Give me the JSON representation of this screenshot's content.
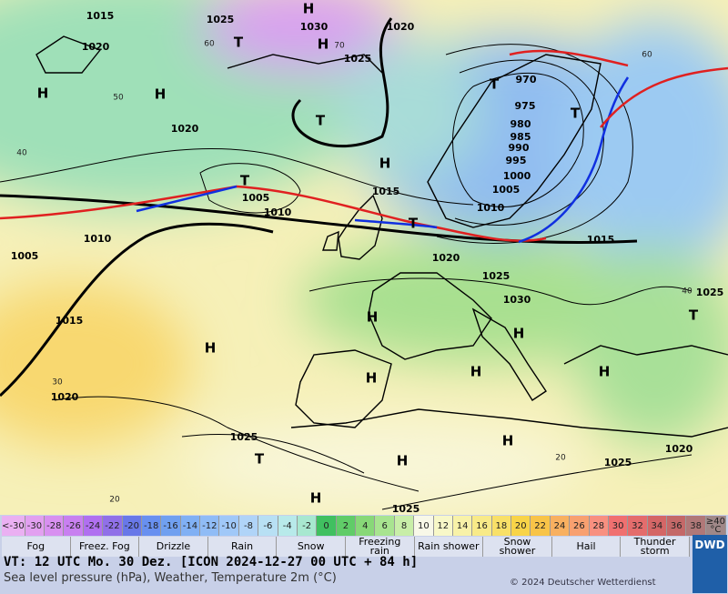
{
  "map": {
    "isobar_labels": [
      "1015",
      "1025",
      "1030",
      "1020",
      "1020",
      "1025",
      "970",
      "975",
      "980",
      "985",
      "990",
      "995",
      "1000",
      "1005",
      "1010",
      "1015",
      "1020",
      "1005",
      "1010",
      "1015",
      "1010",
      "1005",
      "1015",
      "1020",
      "1025",
      "1030",
      "1025",
      "1020",
      "1025",
      "1020",
      "1025",
      "1025"
    ],
    "pressure_centers": [
      "H",
      "H",
      "H",
      "H",
      "H",
      "H",
      "H",
      "H",
      "H",
      "H",
      "H",
      "H",
      "H",
      "H",
      "T",
      "T",
      "T",
      "T",
      "T",
      "T",
      "T",
      "T"
    ],
    "latitude_labels": [
      "60",
      "50",
      "40",
      "30",
      "20",
      "70",
      "60",
      "40",
      "20"
    ]
  },
  "color_scale": [
    {
      "label": "<-30",
      "color": "#eab0f2"
    },
    {
      "label": -30,
      "color": "#e2a0f0"
    },
    {
      "label": -28,
      "color": "#d890f0"
    },
    {
      "label": -26,
      "color": "#c880f0"
    },
    {
      "label": -24,
      "color": "#b070f0"
    },
    {
      "label": -22,
      "color": "#9070e8"
    },
    {
      "label": -20,
      "color": "#6878e8"
    },
    {
      "label": -18,
      "color": "#6890f0"
    },
    {
      "label": -16,
      "color": "#70a0f0"
    },
    {
      "label": -14,
      "color": "#80b0f4"
    },
    {
      "label": -12,
      "color": "#90bcf6"
    },
    {
      "label": -10,
      "color": "#a0c8f8"
    },
    {
      "label": -8,
      "color": "#b0d4f8"
    },
    {
      "label": -6,
      "color": "#b8e0f4"
    },
    {
      "label": -4,
      "color": "#b8eaea"
    },
    {
      "label": -2,
      "color": "#a8e8d0"
    },
    {
      "label": 0,
      "color": "#40c060"
    },
    {
      "label": 2,
      "color": "#60cc68"
    },
    {
      "label": 4,
      "color": "#88d878"
    },
    {
      "label": 6,
      "color": "#a8e490"
    },
    {
      "label": 8,
      "color": "#c8eea8"
    },
    {
      "label": 10,
      "color": "#f8f8e8"
    },
    {
      "label": 12,
      "color": "#f8f8c8"
    },
    {
      "label": 14,
      "color": "#f8f2a8"
    },
    {
      "label": 16,
      "color": "#f8ea88"
    },
    {
      "label": 18,
      "color": "#f8e068"
    },
    {
      "label": 20,
      "color": "#f8d448"
    },
    {
      "label": 22,
      "color": "#f8c448"
    },
    {
      "label": 24,
      "color": "#f8b060"
    },
    {
      "label": 26,
      "color": "#f8a070"
    },
    {
      "label": 28,
      "color": "#f89080"
    },
    {
      "label": 30,
      "color": "#f07070"
    },
    {
      "label": 32,
      "color": "#e46c6c"
    },
    {
      "label": 34,
      "color": "#d46666"
    },
    {
      "label": 36,
      "color": "#c46868"
    },
    {
      "label": 38,
      "color": "#b07878"
    },
    {
      "label": "≥40 °C",
      "color": "#a08888"
    }
  ],
  "legend": [
    "Fog",
    "Freez. Fog",
    "Drizzle",
    "Rain",
    "Snow",
    "Freezing rain",
    "Rain shower",
    "Snow shower",
    "Hail",
    "Thunder storm"
  ],
  "footer": {
    "valid_time": "VT: 12 UTC Mo.  30 Dez. [ICON 2024-12-27  00 UTC + 84 h]",
    "description": "Sea level pressure (hPa), Weather, Temperature 2m (°C)",
    "copyright": "© 2024 Deutscher Wetterdienst",
    "logo": "DWD"
  }
}
